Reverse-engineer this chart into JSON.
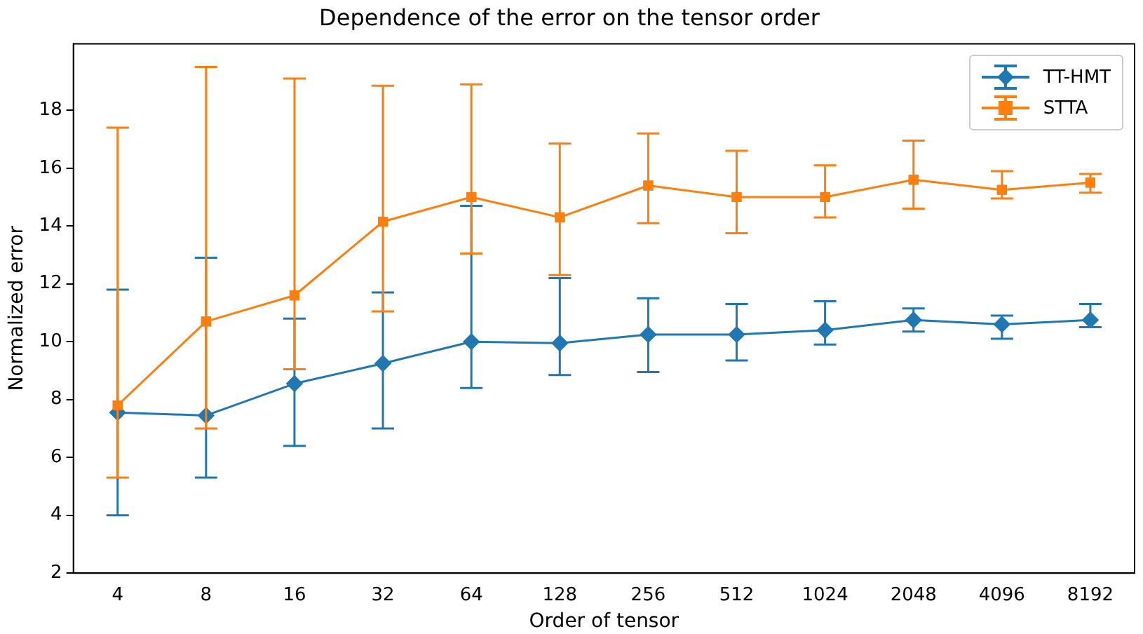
{
  "chart_data": {
    "type": "line",
    "title": "Dependence of the error on the tensor order",
    "xlabel": "Order of tensor",
    "ylabel": "Normalized error",
    "categories": [
      "4",
      "8",
      "16",
      "32",
      "64",
      "128",
      "256",
      "512",
      "1024",
      "2048",
      "4096",
      "8192"
    ],
    "series": [
      {
        "name": "TT-HMT",
        "color": "#1f77b4",
        "marker": "diamond",
        "values": [
          7.55,
          7.45,
          8.55,
          9.25,
          10.0,
          9.95,
          10.25,
          10.25,
          10.4,
          10.75,
          10.6,
          10.75
        ],
        "errors": [
          [
            4.0,
            11.8
          ],
          [
            5.3,
            12.9
          ],
          [
            6.4,
            10.8
          ],
          [
            7.0,
            11.7
          ],
          [
            8.4,
            14.7
          ],
          [
            8.85,
            12.2
          ],
          [
            8.95,
            11.5
          ],
          [
            9.35,
            11.3
          ],
          [
            9.9,
            11.4
          ],
          [
            10.35,
            11.15
          ],
          [
            10.1,
            10.9
          ],
          [
            10.5,
            11.3
          ]
        ]
      },
      {
        "name": "STTA",
        "color": "#ff7f0e",
        "marker": "square",
        "values": [
          7.8,
          10.7,
          11.6,
          14.15,
          15.0,
          14.3,
          15.4,
          15.0,
          15.0,
          15.6,
          15.25,
          15.5
        ],
        "errors": [
          [
            5.3,
            17.4
          ],
          [
            7.0,
            19.5
          ],
          [
            9.05,
            19.1
          ],
          [
            11.05,
            18.85
          ],
          [
            13.05,
            18.9
          ],
          [
            12.3,
            16.85
          ],
          [
            14.1,
            17.2
          ],
          [
            13.75,
            16.6
          ],
          [
            14.3,
            16.1
          ],
          [
            14.6,
            16.95
          ],
          [
            14.95,
            15.9
          ],
          [
            15.15,
            15.8
          ]
        ]
      }
    ],
    "ylim": [
      2,
      20.3
    ],
    "yticks": [
      2,
      4,
      6,
      8,
      10,
      12,
      14,
      16,
      18
    ],
    "grid": false,
    "legend": "top right",
    "line_style": "solid"
  }
}
